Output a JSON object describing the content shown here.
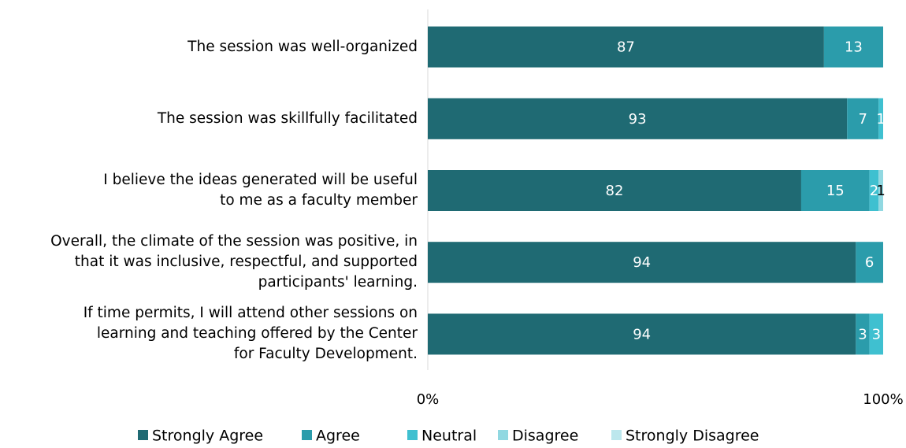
{
  "chart_data": {
    "type": "bar",
    "orientation": "horizontal",
    "stack": "percent",
    "categories": [
      "The session was well-organized",
      "The session was skillfully facilitated",
      "I believe the ideas generated will be useful\nto me as a faculty member",
      "Overall, the climate of the session was positive, in\nthat it was inclusive, respectful, and supported\nparticipants' learning.",
      "If time permits, I will attend other sessions on\nlearning and teaching offered by the Center\nfor Faculty Development."
    ],
    "series": [
      {
        "name": "Strongly Agree",
        "color": "#1f6a73",
        "label_color": "#ffffff",
        "values": [
          87,
          93,
          82,
          94,
          94
        ]
      },
      {
        "name": "Agree",
        "color": "#2b9cab",
        "label_color": "#ffffff",
        "values": [
          13,
          7,
          15,
          6,
          3
        ]
      },
      {
        "name": "Neutral",
        "color": "#3fc0d0",
        "label_color": "#ffffff",
        "values": [
          null,
          1,
          2,
          null,
          3
        ]
      },
      {
        "name": "Disagree",
        "color": "#91d8e1",
        "label_color": "#000000",
        "values": [
          null,
          null,
          1,
          null,
          null
        ]
      },
      {
        "name": "Strongly Disagree",
        "color": "#bce7ed",
        "label_color": "#000000",
        "values": [
          null,
          null,
          null,
          null,
          null
        ]
      }
    ],
    "xlim": [
      0,
      100
    ],
    "xticks": [
      {
        "value": 0,
        "label": "0%"
      },
      {
        "value": 100,
        "label": "100%"
      }
    ],
    "legend": "bottom"
  }
}
